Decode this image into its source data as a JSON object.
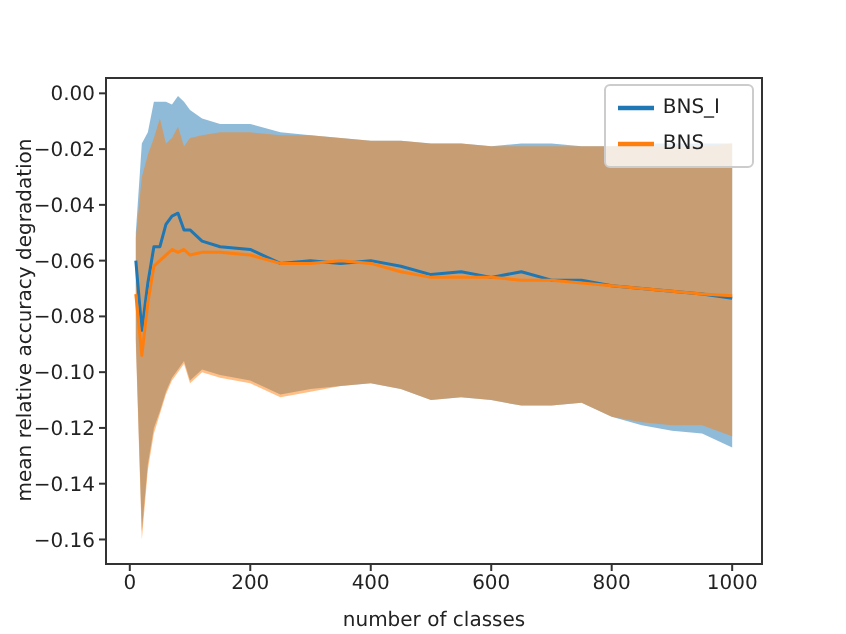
{
  "chart_data": {
    "type": "line",
    "xlabel": "number of classes",
    "ylabel": "mean relative accuracy degradation",
    "x": [
      10,
      20,
      30,
      40,
      50,
      60,
      70,
      80,
      90,
      100,
      120,
      150,
      200,
      250,
      300,
      350,
      400,
      450,
      500,
      550,
      600,
      650,
      700,
      750,
      800,
      850,
      900,
      950,
      1000
    ],
    "series": [
      {
        "name": "BNS_I",
        "color": "#1f77b4",
        "values": [
          -0.06,
          -0.085,
          -0.068,
          -0.055,
          -0.055,
          -0.047,
          -0.044,
          -0.043,
          -0.049,
          -0.049,
          -0.053,
          -0.055,
          -0.056,
          -0.061,
          -0.06,
          -0.061,
          -0.06,
          -0.062,
          -0.065,
          -0.064,
          -0.066,
          -0.064,
          -0.067,
          -0.067,
          -0.069,
          -0.07,
          -0.071,
          -0.072,
          -0.0735
        ],
        "lower": [
          -0.088,
          -0.157,
          -0.133,
          -0.12,
          -0.114,
          -0.107,
          -0.102,
          -0.099,
          -0.096,
          -0.103,
          -0.099,
          -0.101,
          -0.103,
          -0.108,
          -0.106,
          -0.105,
          -0.104,
          -0.106,
          -0.11,
          -0.109,
          -0.11,
          -0.112,
          -0.112,
          -0.111,
          -0.116,
          -0.119,
          -0.121,
          -0.122,
          -0.127
        ],
        "upper": [
          -0.05,
          -0.018,
          -0.014,
          -0.003,
          -0.003,
          -0.003,
          -0.004,
          -0.001,
          -0.003,
          -0.006,
          -0.009,
          -0.011,
          -0.011,
          -0.014,
          -0.015,
          -0.016,
          -0.017,
          -0.017,
          -0.018,
          -0.018,
          -0.019,
          -0.018,
          -0.018,
          -0.019,
          -0.019,
          -0.018,
          -0.018,
          -0.018,
          -0.018
        ]
      },
      {
        "name": "BNS",
        "color": "#ff7f0e",
        "values": [
          -0.072,
          -0.094,
          -0.075,
          -0.062,
          -0.06,
          -0.058,
          -0.056,
          -0.057,
          -0.056,
          -0.058,
          -0.057,
          -0.057,
          -0.058,
          -0.061,
          -0.061,
          -0.06,
          -0.061,
          -0.064,
          -0.066,
          -0.066,
          -0.066,
          -0.067,
          -0.067,
          -0.068,
          -0.069,
          -0.07,
          -0.071,
          -0.072,
          -0.0726
        ],
        "lower": [
          -0.09,
          -0.16,
          -0.135,
          -0.122,
          -0.115,
          -0.108,
          -0.103,
          -0.1,
          -0.097,
          -0.104,
          -0.1,
          -0.102,
          -0.104,
          -0.109,
          -0.107,
          -0.105,
          -0.104,
          -0.106,
          -0.11,
          -0.109,
          -0.11,
          -0.112,
          -0.112,
          -0.111,
          -0.116,
          -0.118,
          -0.119,
          -0.119,
          -0.123
        ],
        "upper": [
          -0.052,
          -0.03,
          -0.022,
          -0.016,
          -0.009,
          -0.018,
          -0.016,
          -0.012,
          -0.019,
          -0.016,
          -0.015,
          -0.014,
          -0.014,
          -0.015,
          -0.015,
          -0.016,
          -0.017,
          -0.017,
          -0.018,
          -0.018,
          -0.019,
          -0.019,
          -0.019,
          -0.019,
          -0.019,
          -0.019,
          -0.019,
          -0.019,
          -0.018
        ]
      }
    ],
    "xlim": [
      -39.5,
      1049.5
    ],
    "xticks": [
      0,
      200,
      400,
      600,
      800,
      1000
    ],
    "ylim": [
      -0.1688,
      0.0055
    ],
    "yticks": [
      {
        "value": 0,
        "label": "0.00"
      },
      {
        "value": -0.02,
        "label": "−0.02"
      },
      {
        "value": -0.04,
        "label": "−0.04"
      },
      {
        "value": -0.06,
        "label": "−0.06"
      },
      {
        "value": -0.08,
        "label": "−0.08"
      },
      {
        "value": -0.1,
        "label": "−0.10"
      },
      {
        "value": -0.12,
        "label": "−0.12"
      },
      {
        "value": -0.14,
        "label": "−0.14"
      },
      {
        "value": -0.16,
        "label": "−0.16"
      }
    ],
    "legend": "top right",
    "marker": "none",
    "line_style": "solid",
    "grid": false
  }
}
